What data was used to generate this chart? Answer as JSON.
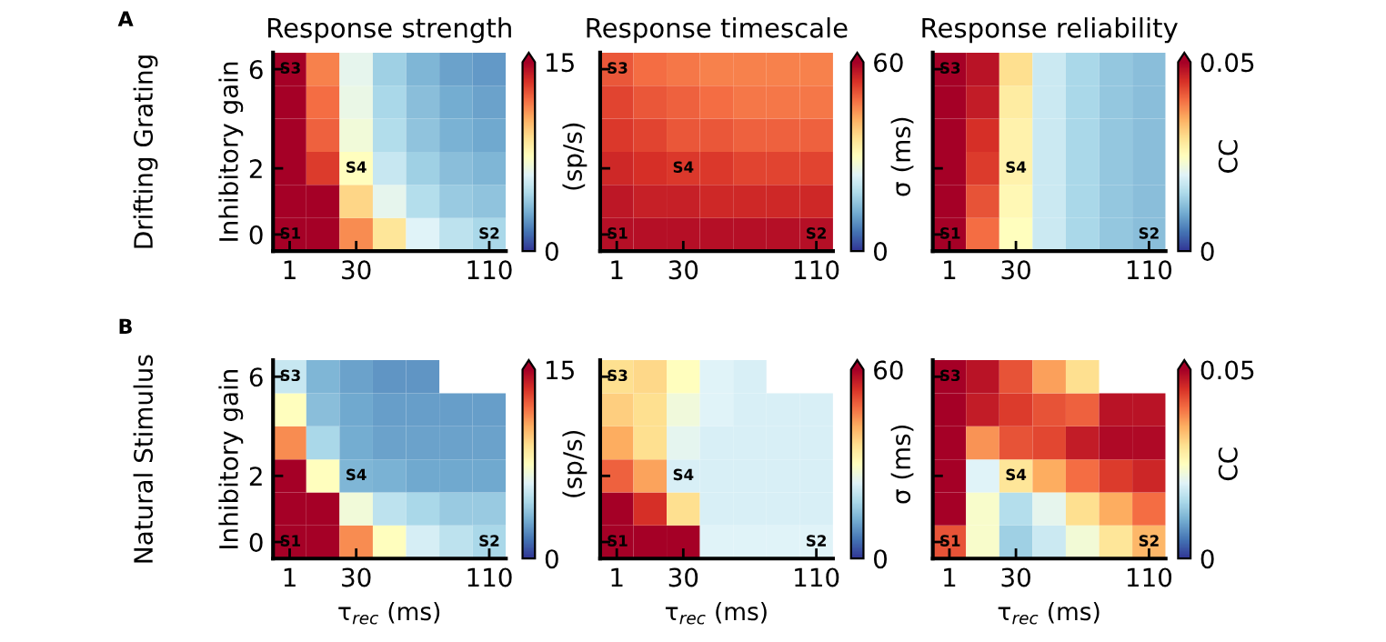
{
  "chart_data": [
    {
      "type": "heatmap",
      "title": "Response strength",
      "ylabel": "Inhibitory gain",
      "clabel": "(sp/s)",
      "clim": [
        0,
        15
      ],
      "cticks": [
        0,
        15
      ],
      "categories": [
        "1",
        null,
        "30",
        null,
        null,
        null,
        "110"
      ],
      "y_categories": [
        "6",
        null,
        null,
        "2",
        null,
        "0"
      ],
      "cells": [
        [
          15,
          11.5,
          6.3,
          4.2,
          3.3,
          2.7,
          2.5
        ],
        [
          15,
          12,
          6.5,
          4.5,
          3.6,
          3,
          2.7
        ],
        [
          15,
          12.3,
          6.8,
          4.7,
          3.8,
          3.2,
          2.9
        ],
        [
          15,
          13.2,
          7.5,
          5.3,
          4.2,
          3.6,
          3.3
        ],
        [
          15,
          15,
          9.3,
          6.3,
          4.8,
          4,
          3.8
        ],
        [
          15,
          15,
          11.3,
          8.7,
          6,
          5,
          4.5
        ]
      ],
      "annotations": [
        "A",
        "Drifting Grating",
        "S1",
        "S2",
        "S3",
        "S4"
      ]
    },
    {
      "type": "heatmap",
      "title": "Response timescale",
      "tick_labels": "x",
      "clabel": "σ (ms)",
      "clim": [
        0,
        60
      ],
      "cticks": [
        0,
        60
      ],
      "categories": [
        "1",
        null,
        "30",
        null,
        null,
        null,
        "110"
      ],
      "y_categories": [
        "6",
        null,
        null,
        "2",
        null,
        "0"
      ],
      "cells": [
        [
          50,
          48,
          47,
          46,
          46,
          46,
          46
        ],
        [
          52,
          50,
          49,
          48,
          47,
          47,
          47
        ],
        [
          53,
          52,
          50,
          50,
          49,
          49,
          49
        ],
        [
          55,
          54,
          53,
          53,
          52,
          52,
          52
        ],
        [
          57,
          56,
          56,
          55,
          55,
          55,
          55
        ],
        [
          58,
          58,
          58,
          58,
          58,
          58,
          58
        ]
      ],
      "annotations": [
        "S1",
        "S2",
        "S3",
        "S4"
      ]
    },
    {
      "type": "heatmap",
      "title": "Response reliability",
      "tick_labels": "x",
      "clabel": "CC",
      "clim": [
        0,
        0.05
      ],
      "cticks": [
        0,
        0.05
      ],
      "categories": [
        "1",
        null,
        "30",
        null,
        null,
        null,
        "110"
      ],
      "y_categories": [
        "6",
        null,
        null,
        "2",
        null,
        "0"
      ],
      "cells": [
        [
          0.05,
          0.048,
          0.03,
          0.018,
          0.015,
          0.013,
          0.012
        ],
        [
          0.05,
          0.047,
          0.028,
          0.018,
          0.015,
          0.013,
          0.012
        ],
        [
          0.05,
          0.045,
          0.027,
          0.018,
          0.015,
          0.013,
          0.012
        ],
        [
          0.05,
          0.044,
          0.027,
          0.018,
          0.015,
          0.013,
          0.012
        ],
        [
          0.05,
          0.042,
          0.026,
          0.018,
          0.015,
          0.013,
          0.012
        ],
        [
          0.05,
          0.04,
          0.025,
          0.018,
          0.015,
          0.013,
          0.012
        ]
      ],
      "annotations": [
        "S1",
        "S2",
        "S3",
        "S4"
      ]
    },
    {
      "type": "heatmap",
      "ylabel": "Inhibitory gain",
      "xlabel": "τ$_{rec}$ (ms)",
      "clabel": "(sp/s)",
      "clim": [
        0,
        15
      ],
      "cticks": [
        0,
        15
      ],
      "categories": [
        "1",
        null,
        "30",
        null,
        null,
        null,
        "110"
      ],
      "y_categories": [
        "6",
        null,
        null,
        "2",
        null,
        "0"
      ],
      "cells": [
        [
          5.3,
          3.3,
          2.7,
          2.4,
          2.4,
          null,
          null
        ],
        [
          7.5,
          3.6,
          2.9,
          2.6,
          2.6,
          2.6,
          2.6
        ],
        [
          11.3,
          4.5,
          3,
          2.7,
          2.7,
          2.7,
          2.7
        ],
        [
          15,
          7.5,
          3.3,
          3.2,
          2.9,
          2.9,
          2.9
        ],
        [
          15,
          15,
          6.8,
          5,
          4.5,
          4,
          4
        ],
        [
          15,
          15,
          11.3,
          7.5,
          5.7,
          5,
          4.5
        ]
      ],
      "annotations": [
        "B",
        "Natural Stimulus",
        "S1",
        "S2",
        "S3",
        "S4"
      ]
    },
    {
      "type": "heatmap",
      "tick_labels": "x",
      "xlabel": "τ$_{rec}$ (ms)",
      "clabel": "σ (ms)",
      "clim": [
        0,
        60
      ],
      "cticks": [
        0,
        60
      ],
      "categories": [
        "1",
        null,
        "30",
        null,
        null,
        null,
        "110"
      ],
      "y_categories": [
        "6",
        null,
        null,
        "2",
        null,
        "0"
      ],
      "cells": [
        [
          36,
          37,
          30,
          24,
          23,
          null,
          null
        ],
        [
          38,
          36,
          27,
          24,
          23,
          23,
          23
        ],
        [
          42,
          36,
          25,
          23,
          23,
          23,
          23
        ],
        [
          49,
          43,
          23,
          23,
          23,
          23,
          23
        ],
        [
          60,
          54,
          36,
          23,
          23,
          23,
          23
        ],
        [
          60,
          60,
          60,
          24,
          24,
          24,
          24
        ]
      ],
      "annotations": [
        "S1",
        "S2",
        "S3",
        "S4"
      ]
    },
    {
      "type": "heatmap",
      "tick_labels": "x",
      "xlabel": "τ$_{rec}$ (ms)",
      "clabel": "CC",
      "clim": [
        0,
        0.05
      ],
      "cticks": [
        0,
        0.05
      ],
      "categories": [
        "1",
        null,
        "30",
        null,
        null,
        null,
        "110"
      ],
      "y_categories": [
        "6",
        null,
        null,
        "2",
        null,
        "0"
      ],
      "cells": [
        [
          0.05,
          0.048,
          0.042,
          0.036,
          0.03,
          null,
          null
        ],
        [
          0.05,
          0.047,
          0.044,
          0.042,
          0.041,
          0.048,
          0.048
        ],
        [
          0.05,
          0.037,
          0.042,
          0.043,
          0.047,
          0.049,
          0.049
        ],
        [
          0.05,
          0.02,
          0.029,
          0.035,
          0.04,
          0.044,
          0.046
        ],
        [
          0.05,
          0.024,
          0.016,
          0.021,
          0.03,
          0.035,
          0.04
        ],
        [
          0.042,
          0.024,
          0.014,
          0.018,
          0.023,
          0.029,
          0.034
        ]
      ],
      "annotations": [
        "S1",
        "S2",
        "S3",
        "S4"
      ]
    }
  ]
}
